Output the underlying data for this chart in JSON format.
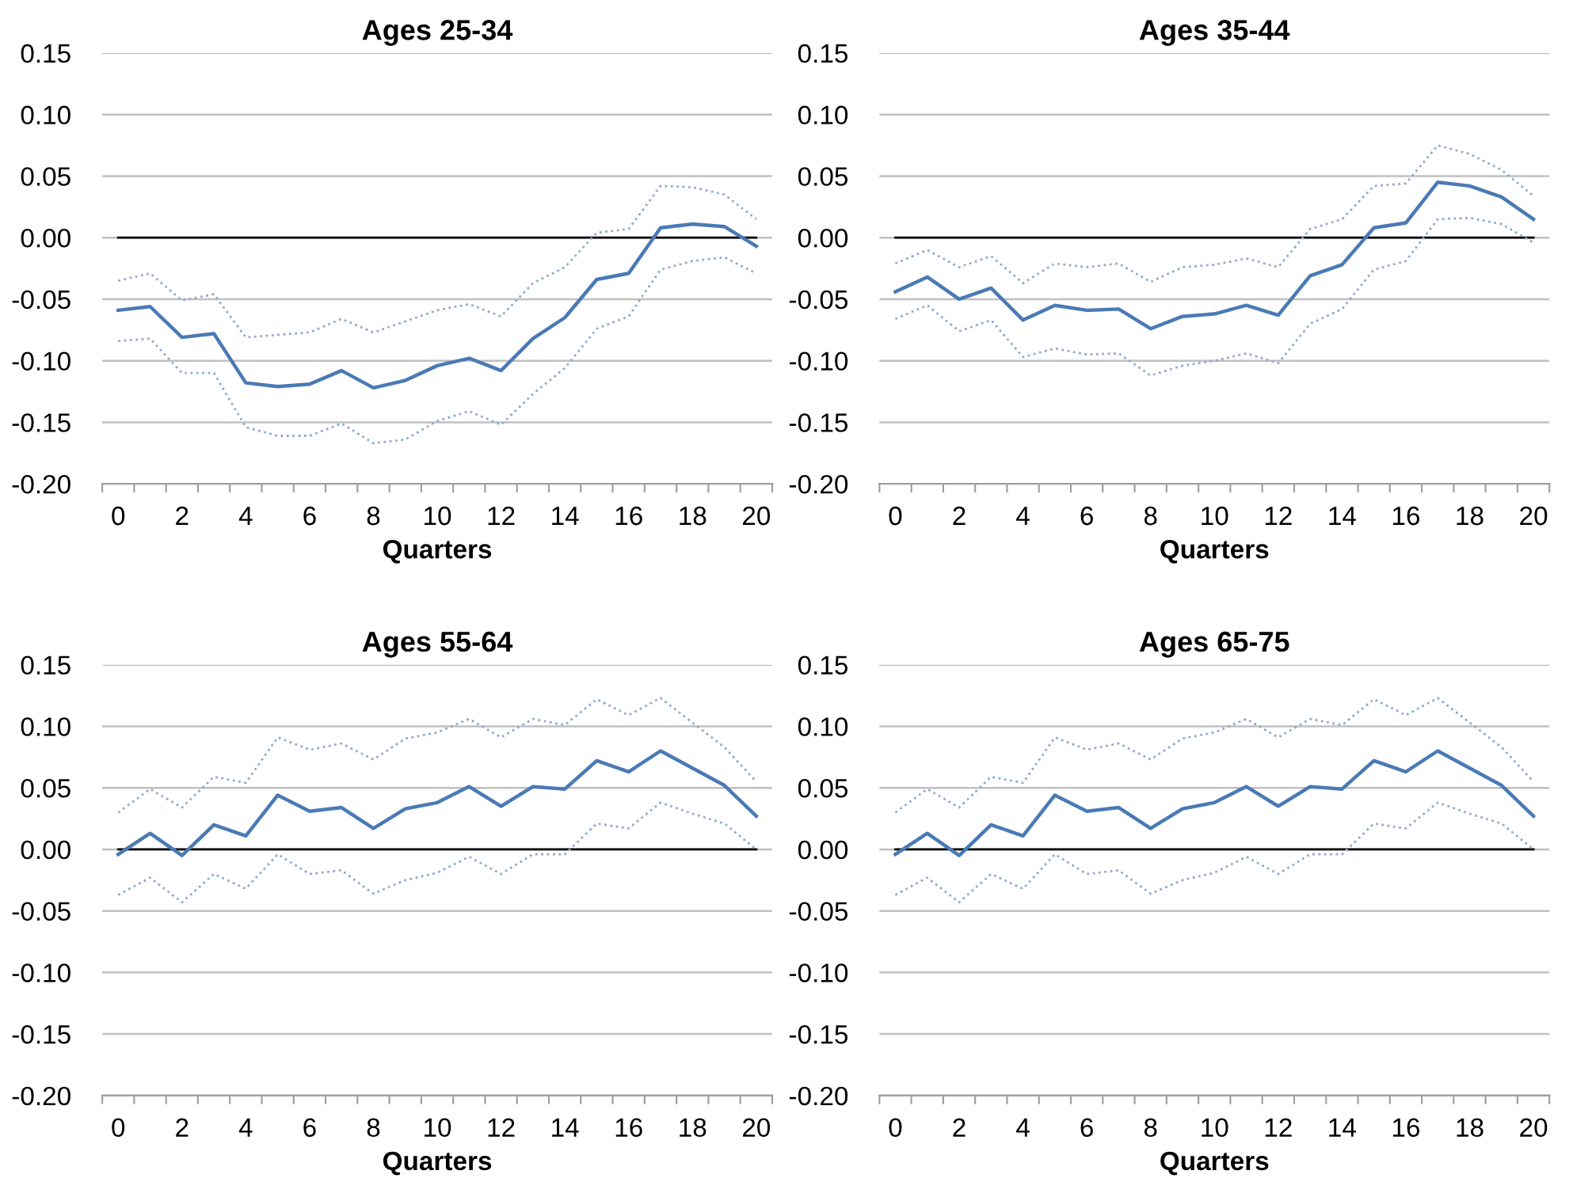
{
  "chart_data": [
    {
      "type": "line",
      "title": "Ages 25-34",
      "xlabel": "Quarters",
      "categories": [
        "0",
        null,
        "2",
        null,
        "4",
        null,
        "6",
        null,
        "8",
        null,
        "10",
        null,
        "12",
        null,
        "14",
        null,
        "16",
        null,
        "18",
        null,
        "20"
      ],
      "series": [
        {
          "color": "#4a7ab5",
          "line_style": "solid",
          "values": [
            -0.059,
            -0.056,
            -0.081,
            -0.078,
            -0.118,
            -0.121,
            -0.119,
            -0.108,
            -0.122,
            -0.116,
            -0.104,
            -0.098,
            -0.108,
            -0.082,
            -0.065,
            -0.034,
            -0.029,
            0.008,
            0.011,
            0.009,
            -0.007
          ]
        },
        {
          "color": "#8fa9d0",
          "line_style": "dotted",
          "values": [
            -0.035,
            -0.029,
            -0.051,
            -0.046,
            -0.081,
            -0.079,
            -0.077,
            -0.066,
            -0.077,
            -0.068,
            -0.059,
            -0.054,
            -0.064,
            -0.037,
            -0.024,
            0.004,
            0.007,
            0.042,
            0.041,
            0.035,
            0.015
          ]
        },
        {
          "color": "#8fa9d0",
          "line_style": "dotted",
          "values": [
            -0.084,
            -0.082,
            -0.11,
            -0.11,
            -0.154,
            -0.161,
            -0.161,
            -0.151,
            -0.167,
            -0.164,
            -0.149,
            -0.141,
            -0.152,
            -0.127,
            -0.106,
            -0.074,
            -0.064,
            -0.026,
            -0.019,
            -0.016,
            -0.029
          ]
        }
      ],
      "ylim": [
        -0.2,
        0.15
      ],
      "yticks": [
        {
          "value": -0.2,
          "label": "-0.20"
        },
        {
          "value": -0.15,
          "label": "-0.15"
        },
        {
          "value": -0.1,
          "label": "-0.10"
        },
        {
          "value": -0.05,
          "label": "-0.05"
        },
        {
          "value": 0,
          "label": "0.00"
        },
        {
          "value": 0.05,
          "label": "0.05"
        },
        {
          "value": 0.1,
          "label": "0.10"
        },
        {
          "value": 0.15,
          "label": "0.15"
        }
      ],
      "grid": "y",
      "marker": "none",
      "ref_lines": [
        {
          "axis": "y",
          "value": 0,
          "color": "#000000"
        }
      ]
    },
    {
      "type": "line",
      "title": "Ages 35-44",
      "xlabel": "Quarters",
      "categories": [
        "0",
        null,
        "2",
        null,
        "4",
        null,
        "6",
        null,
        "8",
        null,
        "10",
        null,
        "12",
        null,
        "14",
        null,
        "16",
        null,
        "18",
        null,
        "20"
      ],
      "series": [
        {
          "color": "#4a7ab5",
          "line_style": "solid",
          "values": [
            -0.044,
            -0.032,
            -0.05,
            -0.041,
            -0.067,
            -0.055,
            -0.059,
            -0.058,
            -0.074,
            -0.064,
            -0.062,
            -0.055,
            -0.063,
            -0.031,
            -0.022,
            0.008,
            0.012,
            0.045,
            0.042,
            0.033,
            0.015
          ]
        },
        {
          "color": "#8fa9d0",
          "line_style": "dotted",
          "values": [
            -0.021,
            -0.01,
            -0.024,
            -0.015,
            -0.037,
            -0.021,
            -0.024,
            -0.021,
            -0.036,
            -0.024,
            -0.022,
            -0.017,
            -0.024,
            0.007,
            0.015,
            0.042,
            0.044,
            0.075,
            0.068,
            0.055,
            0.034
          ]
        },
        {
          "color": "#8fa9d0",
          "line_style": "dotted",
          "values": [
            -0.066,
            -0.055,
            -0.076,
            -0.067,
            -0.097,
            -0.09,
            -0.095,
            -0.094,
            -0.112,
            -0.104,
            -0.1,
            -0.094,
            -0.102,
            -0.07,
            -0.058,
            -0.026,
            -0.019,
            0.015,
            0.016,
            0.011,
            -0.004
          ]
        }
      ],
      "ylim": [
        -0.2,
        0.15
      ],
      "yticks": [
        {
          "value": -0.2,
          "label": "-0.20"
        },
        {
          "value": -0.15,
          "label": "-0.15"
        },
        {
          "value": -0.1,
          "label": "-0.10"
        },
        {
          "value": -0.05,
          "label": "-0.05"
        },
        {
          "value": 0,
          "label": "0.00"
        },
        {
          "value": 0.05,
          "label": "0.05"
        },
        {
          "value": 0.1,
          "label": "0.10"
        },
        {
          "value": 0.15,
          "label": "0.15"
        }
      ],
      "grid": "y",
      "marker": "none",
      "ref_lines": [
        {
          "axis": "y",
          "value": 0,
          "color": "#000000"
        }
      ]
    },
    {
      "type": "line",
      "title": "Ages 55-64",
      "xlabel": "Quarters",
      "categories": [
        "0",
        null,
        "2",
        null,
        "4",
        null,
        "6",
        null,
        "8",
        null,
        "10",
        null,
        "12",
        null,
        "14",
        null,
        "16",
        null,
        "18",
        null,
        "20"
      ],
      "series": [
        {
          "color": "#4a7ab5",
          "line_style": "solid",
          "values": [
            -0.004,
            0.013,
            -0.005,
            0.02,
            0.011,
            0.044,
            0.031,
            0.034,
            0.017,
            0.033,
            0.038,
            0.051,
            0.035,
            0.051,
            0.049,
            0.072,
            0.063,
            0.08,
            0.066,
            0.052,
            0.027
          ]
        },
        {
          "color": "#8fa9d0",
          "line_style": "dotted",
          "values": [
            0.03,
            0.049,
            0.034,
            0.059,
            0.054,
            0.091,
            0.081,
            0.086,
            0.073,
            0.09,
            0.095,
            0.106,
            0.091,
            0.106,
            0.101,
            0.122,
            0.109,
            0.123,
            0.103,
            0.083,
            0.055
          ]
        },
        {
          "color": "#8fa9d0",
          "line_style": "dotted",
          "values": [
            -0.037,
            -0.023,
            -0.043,
            -0.02,
            -0.032,
            -0.004,
            -0.02,
            -0.017,
            -0.036,
            -0.025,
            -0.019,
            -0.006,
            -0.02,
            -0.004,
            -0.004,
            0.021,
            0.017,
            0.038,
            0.029,
            0.021,
            0.0
          ]
        }
      ],
      "ylim": [
        -0.2,
        0.15
      ],
      "yticks": [
        {
          "value": -0.2,
          "label": "-0.20"
        },
        {
          "value": -0.15,
          "label": "-0.15"
        },
        {
          "value": -0.1,
          "label": "-0.10"
        },
        {
          "value": -0.05,
          "label": "-0.05"
        },
        {
          "value": 0,
          "label": "0.00"
        },
        {
          "value": 0.05,
          "label": "0.05"
        },
        {
          "value": 0.1,
          "label": "0.10"
        },
        {
          "value": 0.15,
          "label": "0.15"
        }
      ],
      "grid": "y",
      "marker": "none",
      "ref_lines": [
        {
          "axis": "y",
          "value": 0,
          "color": "#000000"
        }
      ]
    },
    {
      "type": "line",
      "title": "Ages 65-75",
      "xlabel": "Quarters",
      "categories": [
        "0",
        null,
        "2",
        null,
        "4",
        null,
        "6",
        null,
        "8",
        null,
        "10",
        null,
        "12",
        null,
        "14",
        null,
        "16",
        null,
        "18",
        null,
        "20"
      ],
      "series": [
        {
          "color": "#4a7ab5",
          "line_style": "solid",
          "values": [
            -0.004,
            0.013,
            -0.005,
            0.02,
            0.011,
            0.044,
            0.031,
            0.034,
            0.017,
            0.033,
            0.038,
            0.051,
            0.035,
            0.051,
            0.049,
            0.072,
            0.063,
            0.08,
            0.066,
            0.052,
            0.027
          ]
        },
        {
          "color": "#8fa9d0",
          "line_style": "dotted",
          "values": [
            0.03,
            0.049,
            0.034,
            0.059,
            0.054,
            0.091,
            0.081,
            0.086,
            0.073,
            0.09,
            0.095,
            0.106,
            0.091,
            0.106,
            0.101,
            0.122,
            0.109,
            0.123,
            0.103,
            0.083,
            0.055
          ]
        },
        {
          "color": "#8fa9d0",
          "line_style": "dotted",
          "values": [
            -0.037,
            -0.023,
            -0.043,
            -0.02,
            -0.032,
            -0.004,
            -0.02,
            -0.017,
            -0.036,
            -0.025,
            -0.019,
            -0.006,
            -0.02,
            -0.004,
            -0.004,
            0.021,
            0.017,
            0.038,
            0.029,
            0.021,
            0.0
          ]
        }
      ],
      "ylim": [
        -0.2,
        0.15
      ],
      "yticks": [
        {
          "value": -0.2,
          "label": "-0.20"
        },
        {
          "value": -0.15,
          "label": "-0.15"
        },
        {
          "value": -0.1,
          "label": "-0.10"
        },
        {
          "value": -0.05,
          "label": "-0.05"
        },
        {
          "value": 0,
          "label": "0.00"
        },
        {
          "value": 0.05,
          "label": "0.05"
        },
        {
          "value": 0.1,
          "label": "0.10"
        },
        {
          "value": 0.15,
          "label": "0.15"
        }
      ],
      "grid": "y",
      "marker": "none",
      "ref_lines": [
        {
          "axis": "y",
          "value": 0,
          "color": "#000000"
        }
      ]
    }
  ]
}
